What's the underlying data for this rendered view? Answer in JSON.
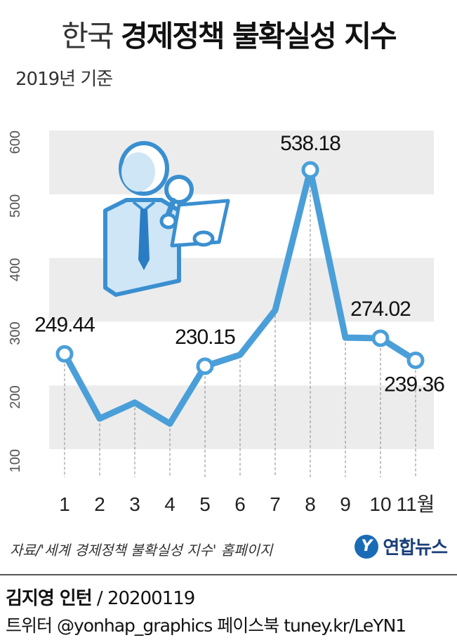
{
  "header": {
    "title_light": "한국",
    "title_bold": "경제정책 불확실성 지수",
    "subtitle": "2019년 기준"
  },
  "chart_data": {
    "type": "line",
    "title": "한국 경제정책 불확실성 지수",
    "subtitle": "2019년 기준",
    "categories": [
      "1",
      "2",
      "3",
      "4",
      "5",
      "6",
      "7",
      "8",
      "9",
      "10",
      "11월"
    ],
    "series": [
      {
        "values": [
          249.44,
          148,
          173,
          140,
          230.15,
          248,
          318,
          538.18,
          275,
          274.02,
          239.36
        ]
      }
    ],
    "data_labels": [
      {
        "index": 0,
        "text": "249.44"
      },
      {
        "index": 4,
        "text": "230.15"
      },
      {
        "index": 7,
        "text": "538.18"
      },
      {
        "index": 9,
        "text": "274.02"
      },
      {
        "index": 10,
        "text": "239.36"
      }
    ],
    "y_ticks": [
      "100",
      "200",
      "300",
      "400",
      "500",
      "600"
    ],
    "ylim": [
      100,
      600
    ],
    "grid": "alternating bands",
    "colors": {
      "line": "#4a9fd9",
      "marker_fill": "#ffffff",
      "band": "#ececec",
      "axis_text": "#555555"
    }
  },
  "illustration": {
    "icon": "analyst-with-magnifier-and-document-icon"
  },
  "footer": {
    "source": "자료/'세계 경제정책 불확실성 지수' 홈페이지",
    "logo_mark": "Y",
    "logo_text": "연합뉴스",
    "credit_name": "김지영 인턴",
    "credit_date": " / 20200119",
    "sns": "트위터 @yonhap_graphics  페이스북 tuney.kr/LeYN1"
  }
}
